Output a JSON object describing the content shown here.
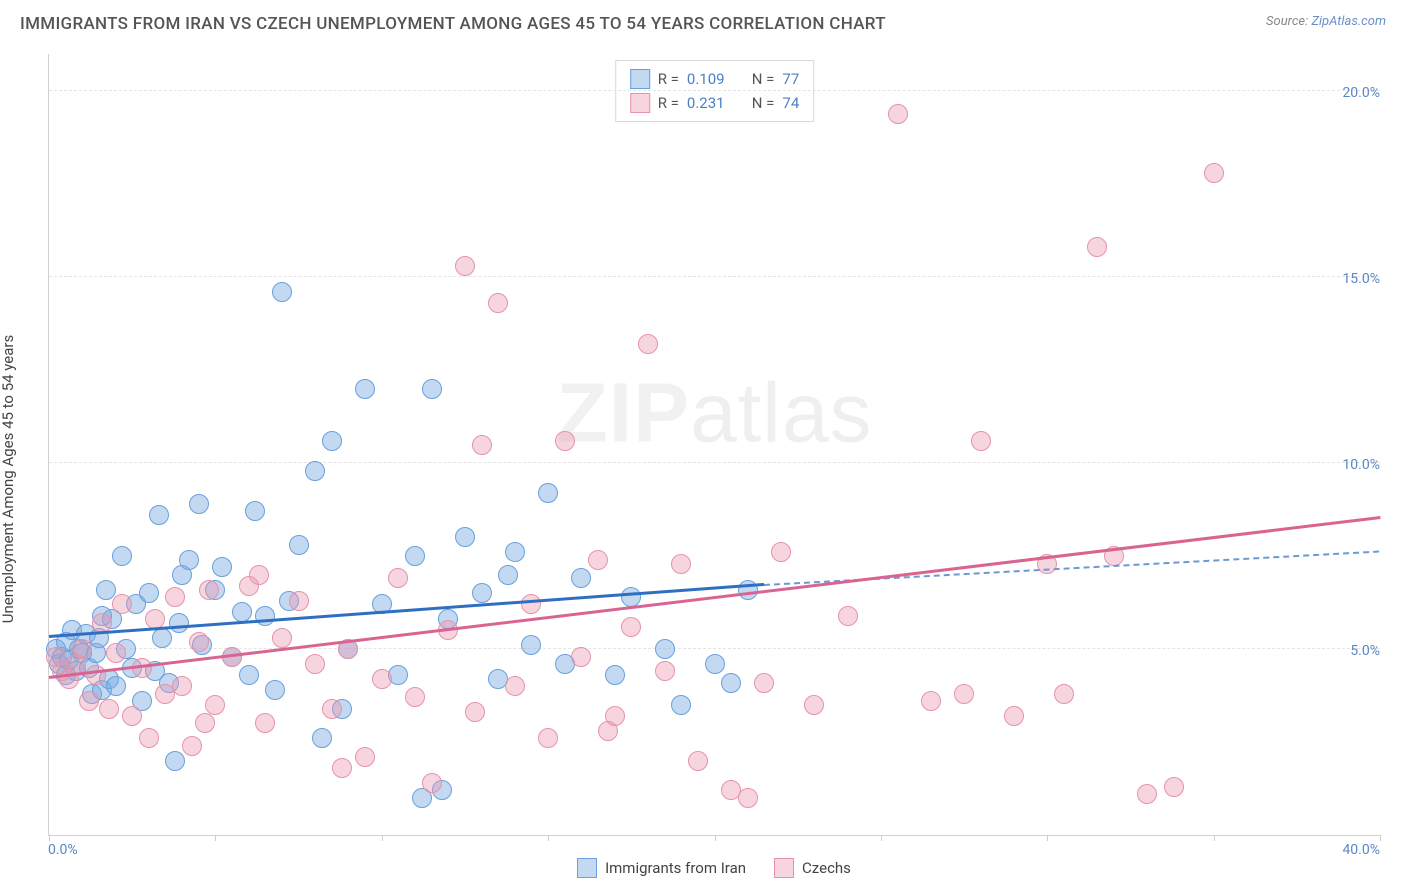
{
  "title": "IMMIGRANTS FROM IRAN VS CZECH UNEMPLOYMENT AMONG AGES 45 TO 54 YEARS CORRELATION CHART",
  "source_label": "Source:",
  "source_name": "ZipAtlas.com",
  "ylabel": "Unemployment Among Ages 45 to 54 years",
  "watermark_bold": "ZIP",
  "watermark_rest": "atlas",
  "chart": {
    "type": "scatter",
    "xlim": [
      0,
      40
    ],
    "ylim": [
      0,
      21
    ],
    "x_tick_positions": [
      0,
      5,
      10,
      15,
      20,
      25,
      30,
      35,
      40
    ],
    "x_tick_labels": {
      "0": "0.0%",
      "40": "40.0%"
    },
    "y_grid": [
      5,
      10,
      15,
      20
    ],
    "y_tick_labels": {
      "5": "5.0%",
      "10": "10.0%",
      "15": "15.0%",
      "20": "20.0%"
    },
    "background_color": "#ffffff",
    "grid_color": "#e4e4e4",
    "axis_color": "#d0d0d0",
    "tick_label_color": "#5a87c7",
    "marker_radius": 10,
    "marker_stroke_width": 1.5,
    "series": [
      {
        "name": "Immigrants from Iran",
        "legend_label": "Immigrants from Iran",
        "fill_color": "rgba(120,170,225,0.45)",
        "stroke_color": "#6aa0dc",
        "R": "0.109",
        "N": "77",
        "trend": {
          "x1": 0,
          "y1": 5.3,
          "x2": 21.5,
          "y2": 6.7,
          "color": "#2f6fc2",
          "dash": false,
          "width": 2.5
        },
        "trend_ext": {
          "x1": 21.5,
          "y1": 6.7,
          "x2": 40,
          "y2": 7.6,
          "color": "#6a9ad4",
          "dash": true,
          "width": 2
        },
        "points": [
          [
            0.2,
            5.0
          ],
          [
            0.3,
            4.6
          ],
          [
            0.4,
            4.8
          ],
          [
            0.5,
            5.2
          ],
          [
            0.5,
            4.3
          ],
          [
            0.6,
            4.7
          ],
          [
            0.7,
            5.5
          ],
          [
            0.8,
            4.4
          ],
          [
            0.9,
            5.0
          ],
          [
            1.0,
            4.9
          ],
          [
            1.1,
            5.4
          ],
          [
            1.2,
            4.5
          ],
          [
            1.3,
            3.8
          ],
          [
            1.4,
            4.9
          ],
          [
            1.5,
            5.3
          ],
          [
            1.6,
            3.9
          ],
          [
            1.7,
            6.6
          ],
          [
            1.8,
            4.2
          ],
          [
            1.9,
            5.8
          ],
          [
            2.0,
            4.0
          ],
          [
            2.2,
            7.5
          ],
          [
            2.3,
            5.0
          ],
          [
            2.5,
            4.5
          ],
          [
            2.6,
            6.2
          ],
          [
            2.8,
            3.6
          ],
          [
            3.0,
            6.5
          ],
          [
            3.2,
            4.4
          ],
          [
            3.3,
            8.6
          ],
          [
            3.4,
            5.3
          ],
          [
            3.6,
            4.1
          ],
          [
            3.8,
            2.0
          ],
          [
            4.0,
            7.0
          ],
          [
            4.2,
            7.4
          ],
          [
            4.5,
            8.9
          ],
          [
            4.6,
            5.1
          ],
          [
            5.0,
            6.6
          ],
          [
            5.2,
            7.2
          ],
          [
            5.5,
            4.8
          ],
          [
            5.8,
            6.0
          ],
          [
            6.0,
            4.3
          ],
          [
            6.2,
            8.7
          ],
          [
            6.5,
            5.9
          ],
          [
            7.0,
            14.6
          ],
          [
            7.2,
            6.3
          ],
          [
            7.5,
            7.8
          ],
          [
            8.0,
            9.8
          ],
          [
            8.2,
            2.6
          ],
          [
            8.5,
            10.6
          ],
          [
            9.0,
            5.0
          ],
          [
            9.5,
            12.0
          ],
          [
            10.0,
            6.2
          ],
          [
            10.5,
            4.3
          ],
          [
            11.0,
            7.5
          ],
          [
            11.2,
            1.0
          ],
          [
            11.5,
            12.0
          ],
          [
            12.0,
            5.8
          ],
          [
            12.5,
            8.0
          ],
          [
            13.0,
            6.5
          ],
          [
            13.5,
            4.2
          ],
          [
            14.0,
            7.6
          ],
          [
            11.8,
            1.2
          ],
          [
            14.5,
            5.1
          ],
          [
            15.0,
            9.2
          ],
          [
            15.5,
            4.6
          ],
          [
            16.0,
            6.9
          ],
          [
            17.0,
            4.3
          ],
          [
            17.5,
            6.4
          ],
          [
            18.5,
            5.0
          ],
          [
            19.0,
            3.5
          ],
          [
            20.0,
            4.6
          ],
          [
            20.5,
            4.1
          ],
          [
            21.0,
            6.6
          ],
          [
            3.9,
            5.7
          ],
          [
            6.8,
            3.9
          ],
          [
            8.8,
            3.4
          ],
          [
            13.8,
            7.0
          ],
          [
            1.6,
            5.9
          ]
        ]
      },
      {
        "name": "Czechs",
        "legend_label": "Czechs",
        "fill_color": "rgba(235,150,175,0.40)",
        "stroke_color": "#e693ab",
        "R": "0.231",
        "N": "74",
        "trend": {
          "x1": 0,
          "y1": 4.2,
          "x2": 40,
          "y2": 8.5,
          "color": "#d96492",
          "dash": false,
          "width": 2.5
        },
        "points": [
          [
            0.2,
            4.8
          ],
          [
            0.4,
            4.4
          ],
          [
            0.6,
            4.2
          ],
          [
            0.8,
            4.6
          ],
          [
            1.0,
            5.0
          ],
          [
            1.2,
            3.6
          ],
          [
            1.4,
            4.3
          ],
          [
            1.6,
            5.7
          ],
          [
            1.8,
            3.4
          ],
          [
            2.0,
            4.9
          ],
          [
            2.2,
            6.2
          ],
          [
            2.5,
            3.2
          ],
          [
            2.8,
            4.5
          ],
          [
            3.0,
            2.6
          ],
          [
            3.2,
            5.8
          ],
          [
            3.5,
            3.8
          ],
          [
            3.8,
            6.4
          ],
          [
            4.0,
            4.0
          ],
          [
            4.3,
            2.4
          ],
          [
            4.5,
            5.2
          ],
          [
            4.8,
            6.6
          ],
          [
            5.0,
            3.5
          ],
          [
            5.5,
            4.8
          ],
          [
            6.0,
            6.7
          ],
          [
            6.5,
            3.0
          ],
          [
            7.0,
            5.3
          ],
          [
            7.5,
            6.3
          ],
          [
            8.0,
            4.6
          ],
          [
            8.5,
            3.4
          ],
          [
            9.0,
            5.0
          ],
          [
            9.5,
            2.1
          ],
          [
            10.0,
            4.2
          ],
          [
            10.5,
            6.9
          ],
          [
            11.0,
            3.7
          ],
          [
            11.5,
            1.4
          ],
          [
            12.0,
            5.5
          ],
          [
            12.5,
            15.3
          ],
          [
            13.0,
            10.5
          ],
          [
            13.5,
            14.3
          ],
          [
            14.0,
            4.0
          ],
          [
            14.5,
            6.2
          ],
          [
            15.0,
            2.6
          ],
          [
            15.5,
            10.6
          ],
          [
            16.0,
            4.8
          ],
          [
            16.5,
            7.4
          ],
          [
            17.0,
            3.2
          ],
          [
            17.5,
            5.6
          ],
          [
            18.0,
            13.2
          ],
          [
            18.5,
            4.4
          ],
          [
            19.0,
            7.3
          ],
          [
            19.5,
            2.0
          ],
          [
            20.5,
            1.2
          ],
          [
            21.5,
            4.1
          ],
          [
            22.0,
            7.6
          ],
          [
            23.0,
            3.5
          ],
          [
            24.0,
            5.9
          ],
          [
            25.5,
            19.4
          ],
          [
            26.5,
            3.6
          ],
          [
            27.5,
            3.8
          ],
          [
            28.0,
            10.6
          ],
          [
            29.0,
            3.2
          ],
          [
            30.0,
            7.3
          ],
          [
            30.5,
            3.8
          ],
          [
            31.5,
            15.8
          ],
          [
            32.0,
            7.5
          ],
          [
            33.8,
            1.3
          ],
          [
            33.0,
            1.1
          ],
          [
            35.0,
            17.8
          ],
          [
            4.7,
            3.0
          ],
          [
            6.3,
            7.0
          ],
          [
            8.8,
            1.8
          ],
          [
            12.8,
            3.3
          ],
          [
            16.8,
            2.8
          ],
          [
            21.0,
            1.0
          ]
        ]
      }
    ],
    "correlation_box": {
      "R_label": "R =",
      "N_label": "N ="
    },
    "bottom_legend": [
      {
        "swatch_fill": "rgba(120,170,225,0.45)",
        "swatch_stroke": "#6aa0dc",
        "label": "Immigrants from Iran"
      },
      {
        "swatch_fill": "rgba(235,150,175,0.40)",
        "swatch_stroke": "#e693ab",
        "label": "Czechs"
      }
    ]
  }
}
